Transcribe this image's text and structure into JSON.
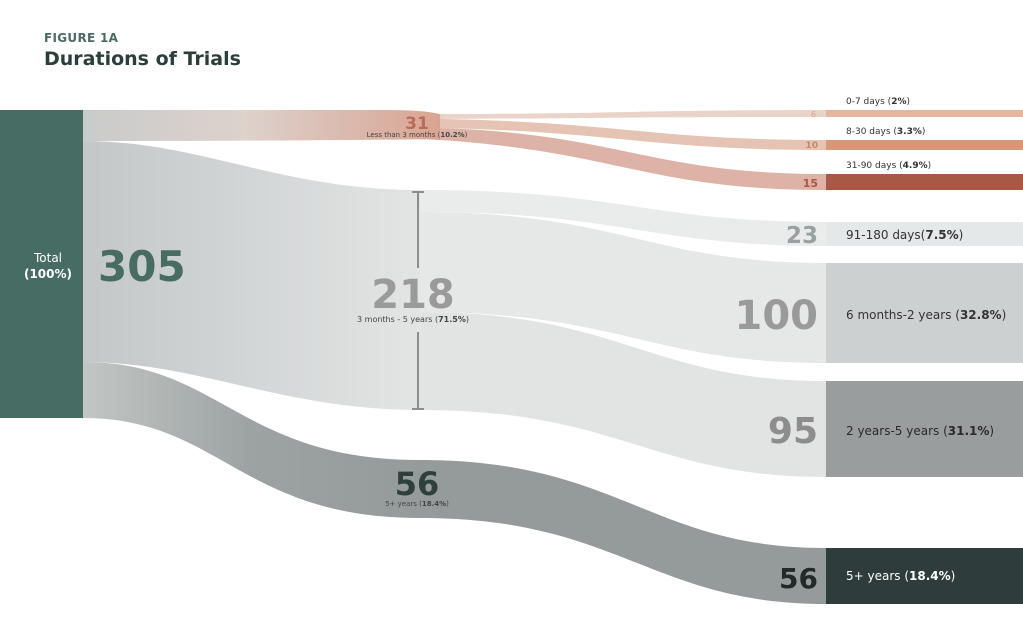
{
  "figure": {
    "label": "FIGURE 1A",
    "title": "Durations of Trials"
  },
  "colors": {
    "total": "#466c64",
    "cat_short": "#b86b58",
    "cat_mid": "#9a9a9a",
    "cat_long": "#2e403d",
    "n_0_7": "#e4b69e",
    "n_8_30": "#d69876",
    "n_31_90": "#a95843",
    "n_91_180": "#e5e8e9",
    "n_6m_2y": "#cdd0d1",
    "n_2y_5y": "#9a9d9d",
    "n_5y": "#2e3c3b"
  },
  "chart_data": {
    "type": "sankey",
    "total": {
      "label_line1": "Total",
      "label_line2": "(100%)",
      "value": 305
    },
    "categories": [
      {
        "id": "short",
        "value": 31,
        "label": "Less than 3 months",
        "pct": "10.2%"
      },
      {
        "id": "mid",
        "value": 218,
        "label": "3 months - 5 years",
        "pct": "71.5%"
      },
      {
        "id": "long",
        "value": 56,
        "label": "5+ years",
        "pct": "18.4%"
      }
    ],
    "outcomes": [
      {
        "id": "o1",
        "parent": "short",
        "value": 6,
        "label": "0-7 days",
        "pct": "2%"
      },
      {
        "id": "o2",
        "parent": "short",
        "value": 10,
        "label": "8-30 days",
        "pct": "3.3%"
      },
      {
        "id": "o3",
        "parent": "short",
        "value": 15,
        "label": "31-90 days",
        "pct": "4.9%"
      },
      {
        "id": "o4",
        "parent": "mid",
        "value": 23,
        "label": "91-180 days",
        "pct": "7.5%"
      },
      {
        "id": "o5",
        "parent": "mid",
        "value": 100,
        "label": "6 months-2 years",
        "pct": "32.8%"
      },
      {
        "id": "o6",
        "parent": "mid",
        "value": 95,
        "label": "2 years-5 years",
        "pct": "31.1%"
      },
      {
        "id": "o7",
        "parent": "long",
        "value": 56,
        "label": "5+ years",
        "pct": "18.4%"
      }
    ]
  }
}
